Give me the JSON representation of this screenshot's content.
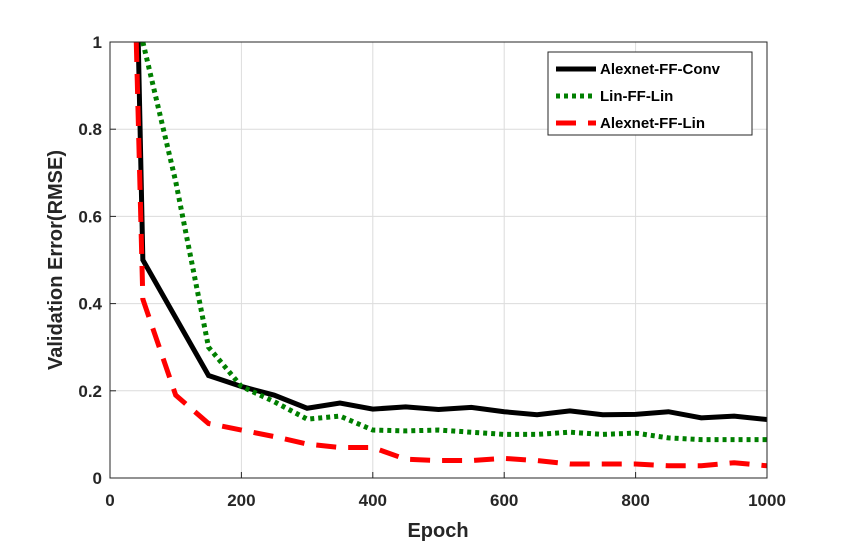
{
  "chart_data": {
    "type": "line",
    "x_label": "Epoch",
    "y_label": "Validation Error(RMSE)",
    "xlim": [
      0,
      1000
    ],
    "ylim": [
      0,
      1
    ],
    "xticks": [
      0,
      200,
      400,
      600,
      800,
      1000
    ],
    "yticks": [
      0,
      0.2,
      0.4,
      0.6,
      0.8,
      1
    ],
    "grid": true,
    "legend": "upper right",
    "series": [
      {
        "name": "Alexnet-FF-Conv",
        "color": "#000000",
        "style": "solid",
        "x": [
          43,
          50,
          150,
          200,
          250,
          300,
          350,
          400,
          450,
          500,
          550,
          600,
          650,
          700,
          750,
          800,
          850,
          900,
          950,
          1000
        ],
        "values": [
          1,
          0.5,
          0.235,
          0.21,
          0.19,
          0.16,
          0.172,
          0.158,
          0.163,
          0.157,
          0.162,
          0.152,
          0.145,
          0.154,
          0.145,
          0.146,
          0.152,
          0.138,
          0.142,
          0.134
        ]
      },
      {
        "name": "Lin-FF-Lin",
        "color": "#007f00",
        "style": "dotted",
        "x": [
          50,
          100,
          150,
          200,
          250,
          300,
          350,
          400,
          450,
          500,
          550,
          600,
          650,
          700,
          750,
          800,
          850,
          900,
          950,
          1000
        ],
        "values": [
          1,
          0.68,
          0.3,
          0.21,
          0.175,
          0.135,
          0.142,
          0.11,
          0.108,
          0.11,
          0.105,
          0.1,
          0.1,
          0.105,
          0.1,
          0.103,
          0.092,
          0.088,
          0.088,
          0.088
        ]
      },
      {
        "name": "Alexnet-FF-Lin",
        "color": "#ff0000",
        "style": "dashed",
        "x": [
          40,
          50,
          100,
          150,
          200,
          250,
          300,
          350,
          400,
          450,
          500,
          550,
          600,
          650,
          700,
          750,
          800,
          850,
          900,
          950,
          1000
        ],
        "values": [
          1,
          0.41,
          0.19,
          0.125,
          0.11,
          0.095,
          0.078,
          0.07,
          0.07,
          0.043,
          0.04,
          0.04,
          0.045,
          0.04,
          0.032,
          0.032,
          0.032,
          0.028,
          0.028,
          0.035,
          0.028
        ]
      }
    ]
  }
}
